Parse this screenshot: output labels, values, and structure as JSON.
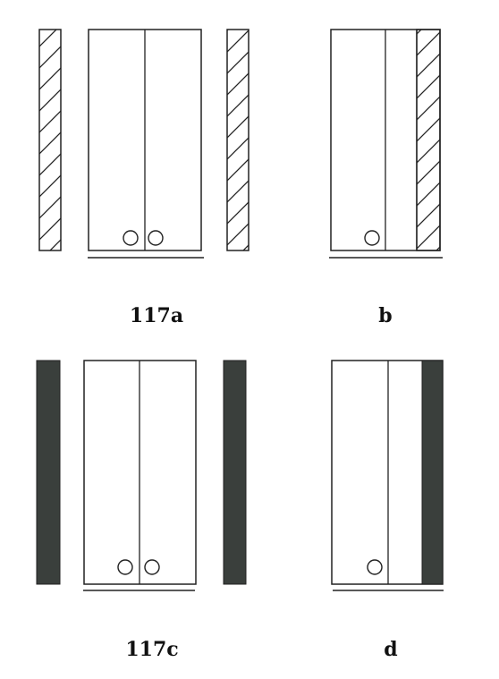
{
  "captions": {
    "a": "117a",
    "b": "b",
    "c": "117c",
    "d": "d"
  },
  "colors": {
    "line": "#222222",
    "dark_panel": "#3a3f3c",
    "background": "#ffffff"
  }
}
